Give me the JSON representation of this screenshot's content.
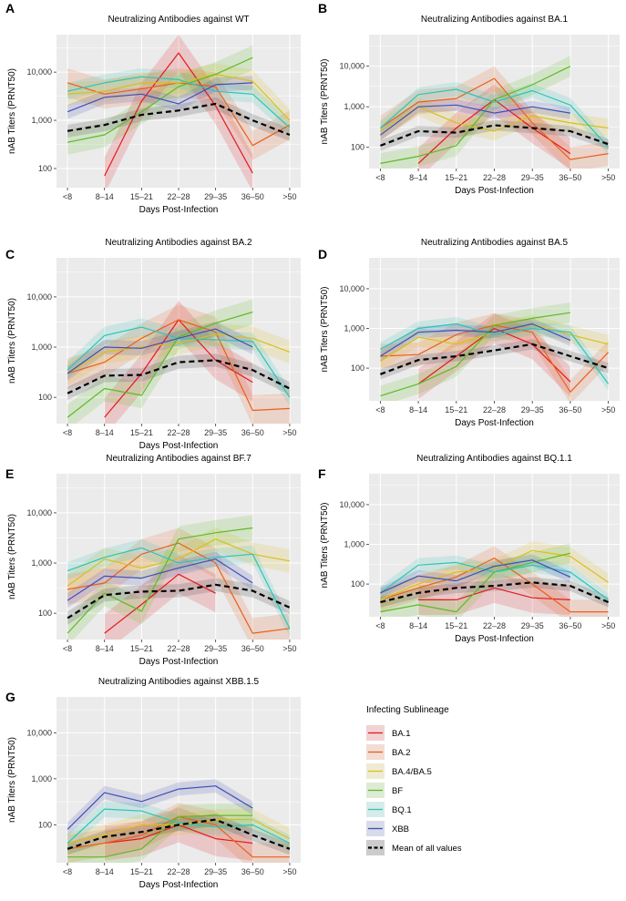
{
  "colors": {
    "BA.1": "#E41A1C",
    "BA.2": "#E8601C",
    "BA.4/BA.5": "#D9BF1E",
    "BF": "#5CBB24",
    "BQ.1": "#2EC4B6",
    "XBB": "#3F4FB5",
    "mean": "#000000",
    "panel_bg": "#EBEBEB",
    "grid": "#FFFFFF"
  },
  "legend": {
    "title": "Infecting Sublineage",
    "items": [
      "BA.1",
      "BA.2",
      "BA.4/BA.5",
      "BF",
      "BQ.1",
      "XBB",
      "Mean of all values"
    ]
  },
  "chart_data": [
    {
      "letter": "A",
      "type": "line",
      "title": "Neutralizing Antibodies against WT",
      "xlabel": "Days Post-Infection",
      "ylabel": "nAB Titers (PRNT50)",
      "yscale": "log10",
      "ylim": [
        40,
        60000
      ],
      "yticks": [
        100,
        1000,
        10000
      ],
      "ytick_labels": [
        "100",
        "1,000",
        "10,000"
      ],
      "categories": [
        "<8",
        "8–14",
        "15–21",
        "22–28",
        "29–35",
        "36–50",
        ">50"
      ],
      "series": [
        {
          "name": "BA.1",
          "values": [
            null,
            70,
            2500,
            25000,
            2000,
            80,
            null
          ]
        },
        {
          "name": "BA.2",
          "values": [
            6000,
            3500,
            4500,
            6000,
            5000,
            300,
            800
          ]
        },
        {
          "name": "BA.4/BA.5",
          "values": [
            3500,
            4000,
            6000,
            6000,
            9000,
            6500,
            1000
          ]
        },
        {
          "name": "BF",
          "values": [
            350,
            500,
            1500,
            5000,
            9000,
            20000,
            null
          ]
        },
        {
          "name": "BQ.1",
          "values": [
            4000,
            6000,
            8000,
            7000,
            4000,
            3500,
            700
          ]
        },
        {
          "name": "XBB",
          "values": [
            1500,
            3000,
            3500,
            2200,
            5500,
            6000,
            null
          ]
        },
        {
          "name": "Mean of all values",
          "values": [
            600,
            800,
            1300,
            1600,
            2200,
            1000,
            500
          ]
        }
      ]
    },
    {
      "letter": "B",
      "type": "line",
      "title": "Neutralizing Antibodies against BA.1",
      "xlabel": "Days Post-Infection",
      "ylabel": "nAB Titers (PRNT50)",
      "yscale": "log10",
      "ylim": [
        30,
        60000
      ],
      "yticks": [
        100,
        1000,
        10000
      ],
      "ytick_labels": [
        "100",
        "1,000",
        "10,000"
      ],
      "categories": [
        "<8",
        "8–14",
        "15–21",
        "22–28",
        "29–35",
        "36–50",
        ">50"
      ],
      "series": [
        {
          "name": "BA.1",
          "values": [
            null,
            40,
            300,
            1500,
            300,
            70,
            null
          ]
        },
        {
          "name": "BA.2",
          "values": [
            300,
            1300,
            1600,
            5000,
            400,
            50,
            70
          ]
        },
        {
          "name": "BA.4/BA.5",
          "values": [
            250,
            1000,
            400,
            250,
            600,
            400,
            300
          ]
        },
        {
          "name": "BF",
          "values": [
            40,
            60,
            110,
            1500,
            3500,
            10000,
            null
          ]
        },
        {
          "name": "BQ.1",
          "values": [
            300,
            2000,
            2700,
            1300,
            2500,
            1100,
            100
          ]
        },
        {
          "name": "XBB",
          "values": [
            200,
            1000,
            1100,
            700,
            1000,
            700,
            null
          ]
        },
        {
          "name": "Mean of all values",
          "values": [
            110,
            250,
            230,
            350,
            300,
            250,
            120
          ]
        }
      ]
    },
    {
      "letter": "C",
      "type": "line",
      "title": "Neutralizing Antibodies against BA.2",
      "xlabel": "Days Post-Infection",
      "ylabel": "nAB Titers (PRNT50)",
      "yscale": "log10",
      "ylim": [
        30,
        60000
      ],
      "yticks": [
        100,
        1000,
        10000
      ],
      "ytick_labels": [
        "100",
        "1,000",
        "10,000"
      ],
      "categories": [
        "<8",
        "8–14",
        "15–21",
        "22–28",
        "29–35",
        "36–50",
        ">50"
      ],
      "series": [
        {
          "name": "BA.1",
          "values": [
            null,
            40,
            300,
            3500,
            550,
            200,
            null
          ]
        },
        {
          "name": "BA.2",
          "values": [
            300,
            500,
            1500,
            3500,
            2000,
            55,
            60
          ]
        },
        {
          "name": "BA.4/BA.5",
          "values": [
            300,
            800,
            1000,
            1200,
            1800,
            1500,
            800
          ]
        },
        {
          "name": "BF",
          "values": [
            40,
            150,
            110,
            1600,
            3000,
            5000,
            null
          ]
        },
        {
          "name": "BQ.1",
          "values": [
            350,
            1700,
            2500,
            1500,
            1400,
            1300,
            100
          ]
        },
        {
          "name": "XBB",
          "values": [
            300,
            1000,
            950,
            1500,
            2300,
            1000,
            null
          ]
        },
        {
          "name": "Mean of all values",
          "values": [
            120,
            270,
            280,
            500,
            550,
            350,
            150
          ]
        }
      ]
    },
    {
      "letter": "D",
      "type": "line",
      "title": "Neutralizing Antibodies against BA.5",
      "xlabel": "Days Post-Infection",
      "ylabel": "nAB Titers (PRNT50)",
      "yscale": "log10",
      "ylim": [
        15,
        60000
      ],
      "yticks": [
        100,
        1000,
        10000
      ],
      "ytick_labels": [
        "100",
        "1,000",
        "10,000"
      ],
      "categories": [
        "<8",
        "8–14",
        "15–21",
        "22–28",
        "29–35",
        "36–50",
        ">50"
      ],
      "series": [
        {
          "name": "BA.1",
          "values": [
            null,
            40,
            200,
            1000,
            400,
            45,
            null
          ]
        },
        {
          "name": "BA.2",
          "values": [
            200,
            220,
            700,
            1200,
            800,
            25,
            250
          ]
        },
        {
          "name": "BA.4/BA.5",
          "values": [
            150,
            600,
            400,
            800,
            1300,
            700,
            400
          ]
        },
        {
          "name": "BF",
          "values": [
            20,
            40,
            110,
            1200,
            1800,
            2500,
            null
          ]
        },
        {
          "name": "BQ.1",
          "values": [
            300,
            1000,
            1300,
            700,
            1000,
            800,
            40
          ]
        },
        {
          "name": "XBB",
          "values": [
            200,
            800,
            900,
            800,
            1300,
            500,
            null
          ]
        },
        {
          "name": "Mean of all values",
          "values": [
            70,
            160,
            200,
            280,
            400,
            200,
            100
          ]
        }
      ]
    },
    {
      "letter": "E",
      "type": "line",
      "title": "Neutralizing Antibodies against BF.7",
      "xlabel": "Days Post-Infection",
      "ylabel": "nAB Titers (PRNT50)",
      "yscale": "log10",
      "ylim": [
        30,
        60000
      ],
      "yticks": [
        100,
        1000,
        10000
      ],
      "ytick_labels": [
        "100",
        "1,000",
        "10,000"
      ],
      "categories": [
        "<8",
        "8–14",
        "15–21",
        "22–28",
        "29–35",
        "36–50",
        ">50"
      ],
      "series": [
        {
          "name": "BA.1",
          "values": [
            null,
            40,
            150,
            600,
            250,
            null,
            null
          ]
        },
        {
          "name": "BA.2",
          "values": [
            300,
            400,
            1500,
            2500,
            1000,
            40,
            50
          ]
        },
        {
          "name": "BA.4/BA.5",
          "values": [
            350,
            1200,
            800,
            1200,
            3000,
            1500,
            1100
          ]
        },
        {
          "name": "BF",
          "values": [
            40,
            250,
            110,
            3000,
            4000,
            5000,
            null
          ]
        },
        {
          "name": "BQ.1",
          "values": [
            700,
            1300,
            2000,
            1000,
            1300,
            1500,
            50
          ]
        },
        {
          "name": "XBB",
          "values": [
            180,
            550,
            500,
            800,
            1200,
            400,
            null
          ]
        },
        {
          "name": "Mean of all values",
          "values": [
            80,
            230,
            270,
            280,
            370,
            280,
            130
          ]
        }
      ]
    },
    {
      "letter": "F",
      "type": "line",
      "title": "Neutralizing Antibodies against BQ.1.1",
      "xlabel": "Days Post-Infection",
      "ylabel": "nAB Titers (PRNT50)",
      "yscale": "log10",
      "ylim": [
        15,
        60000
      ],
      "yticks": [
        100,
        1000,
        10000
      ],
      "ytick_labels": [
        "100",
        "1,000",
        "10,000"
      ],
      "categories": [
        "<8",
        "8–14",
        "15–21",
        "22–28",
        "29–35",
        "36–50",
        ">50"
      ],
      "series": [
        {
          "name": "BA.1",
          "values": [
            null,
            40,
            40,
            80,
            45,
            40,
            null
          ]
        },
        {
          "name": "BA.2",
          "values": [
            40,
            80,
            150,
            450,
            100,
            20,
            20
          ]
        },
        {
          "name": "BA.4/BA.5",
          "values": [
            40,
            100,
            200,
            250,
            700,
            500,
            110
          ]
        },
        {
          "name": "BF",
          "values": [
            20,
            30,
            20,
            200,
            350,
            600,
            null
          ]
        },
        {
          "name": "BQ.1",
          "values": [
            60,
            300,
            350,
            200,
            300,
            200,
            40
          ]
        },
        {
          "name": "XBB",
          "values": [
            60,
            160,
            120,
            280,
            400,
            150,
            null
          ]
        },
        {
          "name": "Mean of all values",
          "values": [
            35,
            60,
            80,
            90,
            110,
            90,
            35
          ]
        }
      ]
    },
    {
      "letter": "G",
      "type": "line",
      "title": "Neutralizing Antibodies against XBB.1.5",
      "xlabel": "Days Post-Infection",
      "ylabel": "nAB Titers (PRNT50)",
      "yscale": "log10",
      "ylim": [
        15,
        60000
      ],
      "yticks": [
        100,
        1000,
        10000
      ],
      "ytick_labels": [
        "100",
        "1,000",
        "10,000"
      ],
      "categories": [
        "<8",
        "8–14",
        "15–21",
        "22–28",
        "29–35",
        "36–50",
        ">50"
      ],
      "series": [
        {
          "name": "BA.1",
          "values": [
            null,
            40,
            50,
            100,
            50,
            40,
            null
          ]
        },
        {
          "name": "BA.2",
          "values": [
            30,
            40,
            60,
            150,
            100,
            20,
            20
          ]
        },
        {
          "name": "BA.4/BA.5",
          "values": [
            40,
            60,
            100,
            100,
            130,
            130,
            50
          ]
        },
        {
          "name": "BF",
          "values": [
            20,
            20,
            30,
            150,
            160,
            160,
            null
          ]
        },
        {
          "name": "BQ.1",
          "values": [
            40,
            220,
            200,
            110,
            90,
            100,
            40
          ]
        },
        {
          "name": "XBB",
          "values": [
            80,
            500,
            320,
            600,
            700,
            230,
            null
          ]
        },
        {
          "name": "Mean of all values",
          "values": [
            30,
            55,
            70,
            100,
            130,
            60,
            30
          ]
        }
      ]
    }
  ]
}
